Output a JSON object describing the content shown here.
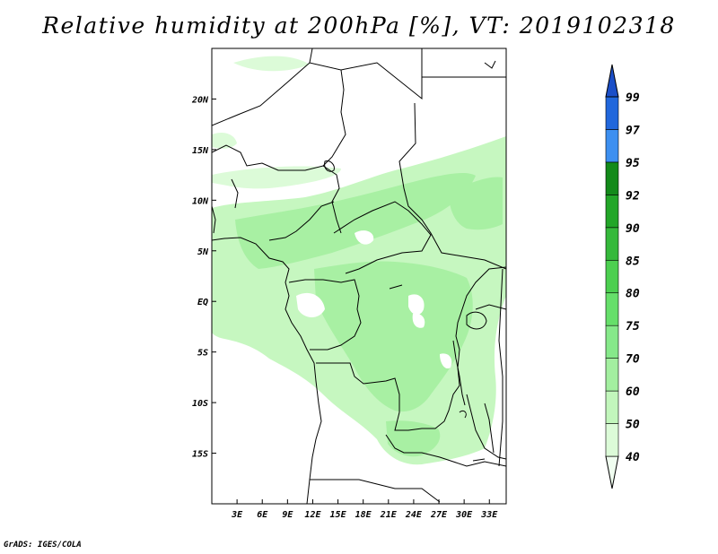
{
  "title": "Relative humidity at 200hPa [%], VT: 2019102318",
  "credit": "GrADS: IGES/COLA",
  "map": {
    "lon_range": [
      0,
      35
    ],
    "lat_range": [
      -20,
      25
    ],
    "lon_ticks": [
      3,
      6,
      9,
      12,
      15,
      18,
      21,
      24,
      27,
      30,
      33
    ],
    "lon_tick_labels": [
      "3E",
      "6E",
      "9E",
      "12E",
      "15E",
      "18E",
      "21E",
      "24E",
      "27E",
      "30E",
      "33E"
    ],
    "lat_ticks": [
      20,
      15,
      10,
      5,
      0,
      -5,
      -10,
      -15
    ],
    "lat_tick_labels": [
      "20N",
      "15N",
      "10N",
      "5N",
      "EQ",
      "5S",
      "10S",
      "15S"
    ]
  },
  "legend": {
    "levels": [
      "40",
      "50",
      "60",
      "70",
      "75",
      "80",
      "85",
      "90",
      "92",
      "95",
      "97",
      "99"
    ],
    "colors": [
      "#f0fef0",
      "#dcfbd8",
      "#c2f6bc",
      "#a3efa0",
      "#86e98a",
      "#66df6a",
      "#4ccf50",
      "#35b93b",
      "#22a628",
      "#138a1a",
      "#3d8ff0",
      "#2167dc",
      "#1b4fc8"
    ]
  }
}
